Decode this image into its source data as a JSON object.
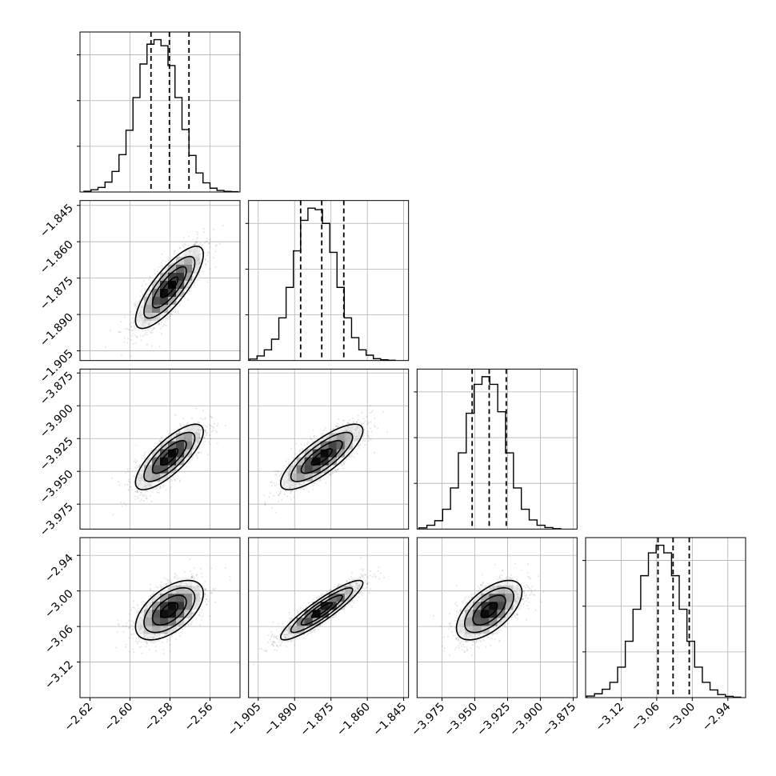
{
  "chart_data": {
    "type": "corner",
    "params": [
      {
        "range": [
          -2.625,
          -2.545
        ],
        "ticks": [
          "-2.62",
          "-2.60",
          "-2.58",
          "-2.56"
        ],
        "tick_values": [
          -2.62,
          -2.6,
          -2.58,
          -2.56
        ],
        "quantiles": [
          -2.5895,
          -2.5803,
          -2.5705
        ],
        "hist": {
          "bins": [
            -2.623,
            -2.6195,
            -2.616,
            -2.6125,
            -2.609,
            -2.6055,
            -2.602,
            -2.5985,
            -2.595,
            -2.5915,
            -2.588,
            -2.5845,
            -2.581,
            -2.5775,
            -2.574,
            -2.5705,
            -2.567,
            -2.5635,
            -2.56,
            -2.5565,
            -2.553,
            -2.5495,
            -2.546
          ],
          "counts": [
            0.005,
            0.015,
            0.03,
            0.065,
            0.135,
            0.245,
            0.405,
            0.62,
            0.84,
            0.97,
            1.0,
            0.96,
            0.83,
            0.62,
            0.41,
            0.24,
            0.125,
            0.06,
            0.025,
            0.01,
            0.004,
            0.002
          ],
          "yticks": [
            0.3,
            0.6,
            0.9
          ]
        }
      },
      {
        "range": [
          -1.909,
          -1.843
        ],
        "ticks": [
          "-1.905",
          "-1.890",
          "-1.875",
          "-1.860",
          "-1.845"
        ],
        "tick_values": [
          -1.905,
          -1.89,
          -1.875,
          -1.86,
          -1.845
        ],
        "quantiles": [
          -1.8875,
          -1.8788,
          -1.8697
        ],
        "hist": {
          "bins": [
            -1.9085,
            -1.9055,
            -1.9025,
            -1.8995,
            -1.8965,
            -1.8935,
            -1.8905,
            -1.8875,
            -1.8845,
            -1.8815,
            -1.8785,
            -1.8755,
            -1.8725,
            -1.8695,
            -1.8665,
            -1.8635,
            -1.8605,
            -1.8575,
            -1.8545,
            -1.8515,
            -1.8485
          ],
          "counts": [
            0.01,
            0.03,
            0.07,
            0.14,
            0.28,
            0.48,
            0.72,
            0.92,
            1.0,
            0.99,
            0.9,
            0.71,
            0.48,
            0.28,
            0.15,
            0.07,
            0.035,
            0.012,
            0.005,
            0.002
          ],
          "yticks": [
            0.3,
            0.6,
            0.9
          ]
        }
      },
      {
        "range": [
          -3.994,
          -3.872
        ],
        "ticks": [
          "-3.975",
          "-3.950",
          "-3.925",
          "-3.900",
          "-3.875"
        ],
        "tick_values": [
          -3.975,
          -3.95,
          -3.925,
          -3.9,
          -3.875
        ],
        "quantiles": [
          -3.952,
          -3.939,
          -3.926
        ],
        "hist": {
          "bins": [
            -3.9925,
            -3.9865,
            -3.9805,
            -3.9745,
            -3.9685,
            -3.9625,
            -3.9565,
            -3.9505,
            -3.9445,
            -3.9385,
            -3.9325,
            -3.9265,
            -3.9205,
            -3.9145,
            -3.9085,
            -3.9025,
            -3.8965,
            -3.8905,
            -3.8845
          ],
          "counts": [
            0.008,
            0.025,
            0.055,
            0.13,
            0.27,
            0.5,
            0.76,
            0.95,
            1.0,
            0.95,
            0.77,
            0.5,
            0.27,
            0.13,
            0.06,
            0.025,
            0.01,
            0.003
          ],
          "yticks": [
            0.3,
            0.6,
            0.9
          ]
        }
      },
      {
        "range": [
          -3.18,
          -2.91
        ],
        "ticks": [
          "-3.12",
          "-3.06",
          "-3.00",
          "-2.94"
        ],
        "tick_values": [
          -3.12,
          -3.06,
          -3.0,
          -2.94
        ],
        "quantiles": [
          -3.0578,
          -3.0324,
          -3.0051
        ],
        "hist": {
          "bins": [
            -3.178,
            -3.165,
            -3.152,
            -3.139,
            -3.126,
            -3.113,
            -3.1,
            -3.087,
            -3.074,
            -3.061,
            -3.048,
            -3.035,
            -3.022,
            -3.009,
            -2.996,
            -2.983,
            -2.97,
            -2.957,
            -2.944,
            -2.931,
            -2.918
          ],
          "counts": [
            0.01,
            0.025,
            0.055,
            0.1,
            0.2,
            0.37,
            0.58,
            0.8,
            0.95,
            1.0,
            0.95,
            0.8,
            0.58,
            0.37,
            0.2,
            0.1,
            0.05,
            0.02,
            0.008,
            0.003
          ],
          "yticks": [
            0.3,
            0.6,
            0.9
          ]
        }
      }
    ],
    "pairs": [
      {
        "row": 1,
        "col": 0,
        "cov": [
          [
            7.2e-05,
            5.76e-05
          ],
          [
            5.76e-05,
            7.2e-05
          ]
        ]
      },
      {
        "row": 2,
        "col": 0,
        "cov": [
          [
            7.2e-05,
            8.21e-05
          ],
          [
            8.21e-05,
            0.000156
          ]
        ]
      },
      {
        "row": 2,
        "col": 1,
        "cov": [
          [
            7.2e-05,
            8.52e-05
          ],
          [
            8.52e-05,
            0.000156
          ]
        ]
      },
      {
        "row": 3,
        "col": 0,
        "cov": [
          [
            7.2e-05,
            0.000118
          ],
          [
            0.000118,
            0.00063
          ]
        ]
      },
      {
        "row": 3,
        "col": 1,
        "cov": [
          [
            7.2e-05,
            0.0001935
          ],
          [
            0.0001935,
            0.00063
          ]
        ]
      },
      {
        "row": 3,
        "col": 2,
        "cov": [
          [
            0.000156,
            0.00019
          ],
          [
            0.00019,
            0.00063
          ]
        ]
      }
    ],
    "contour_levels_sigma": [
      0.5,
      1.0,
      1.5,
      2.0
    ],
    "colors": {
      "line": "#000000",
      "grid": "#b0b0b0",
      "points": "#000000"
    },
    "grid": true
  }
}
